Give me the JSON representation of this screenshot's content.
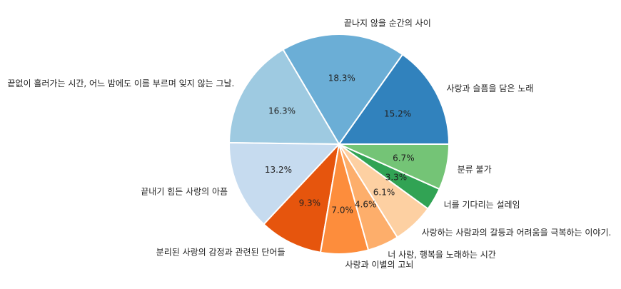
{
  "chart_data": {
    "type": "pie",
    "title": "",
    "slices": [
      {
        "label": "사랑과 슬픔을 담은 노래",
        "value": 15.2,
        "pct_label": "15.2%",
        "color": "#3182bd"
      },
      {
        "label": "끝나지 않을 순간의 사이",
        "value": 18.3,
        "pct_label": "18.3%",
        "color": "#6baed6"
      },
      {
        "label": "끝없이 흘러가는 시간, 어느 밤에도 이름 부르며 잊지 않는 그날.",
        "value": 16.3,
        "pct_label": "16.3%",
        "color": "#9ecae1"
      },
      {
        "label": "끝내기 힘든 사랑의 아픔",
        "value": 13.2,
        "pct_label": "13.2%",
        "color": "#c6dbef"
      },
      {
        "label": "분리된 사랑의 감정과 관련된 단어들",
        "value": 9.3,
        "pct_label": "9.3%",
        "color": "#e6550d"
      },
      {
        "label": "사랑과 이별의 고뇌",
        "value": 7.0,
        "pct_label": "7.0%",
        "color": "#fd8d3c"
      },
      {
        "label": "너 사랑, 행복을 노래하는 시간",
        "value": 4.6,
        "pct_label": "4.6%",
        "color": "#fdae6b"
      },
      {
        "label": "사랑하는 사람과의 갈등과 어려움을 극복하는 이야기.",
        "value": 6.1,
        "pct_label": "6.1%",
        "color": "#fdd0a2"
      },
      {
        "label": "너를 기다리는 설레임",
        "value": 3.3,
        "pct_label": "3.3%",
        "color": "#31a354"
      },
      {
        "label": "분류 불가",
        "value": 6.7,
        "pct_label": "6.7%",
        "color": "#74c476"
      }
    ],
    "start_angle_deg": 0,
    "direction": "counterclockwise",
    "legend": "none"
  }
}
